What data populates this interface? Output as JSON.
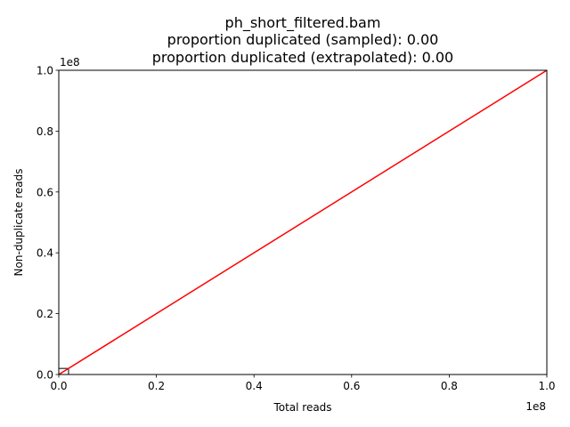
{
  "chart_data": {
    "type": "line",
    "title_lines": [
      "ph_short_filtered.bam",
      "proportion duplicated (sampled): 0.00",
      "proportion duplicated (extrapolated): 0.00"
    ],
    "xlabel": "Total reads",
    "ylabel": "Non-duplicate reads",
    "xlim": [
      0,
      100000000
    ],
    "ylim": [
      0,
      100000000
    ],
    "x_ticks": [
      0,
      20000000,
      40000000,
      60000000,
      80000000,
      100000000
    ],
    "x_tick_labels": [
      "0.0",
      "0.2",
      "0.4",
      "0.6",
      "0.8",
      "1.0"
    ],
    "y_ticks": [
      0,
      20000000,
      40000000,
      60000000,
      80000000,
      100000000
    ],
    "y_tick_labels": [
      "0.0",
      "0.2",
      "0.4",
      "0.6",
      "0.8",
      "1.0"
    ],
    "x_offset_label": "1e8",
    "y_offset_label": "1e8",
    "grid": false,
    "series": [
      {
        "color": "#ff0000",
        "x": [
          0,
          100000000
        ],
        "y": [
          0,
          100000000
        ]
      }
    ],
    "sample_box": {
      "color": "#000000",
      "x": [
        0,
        2000000
      ],
      "y": [
        0,
        2000000
      ]
    }
  }
}
